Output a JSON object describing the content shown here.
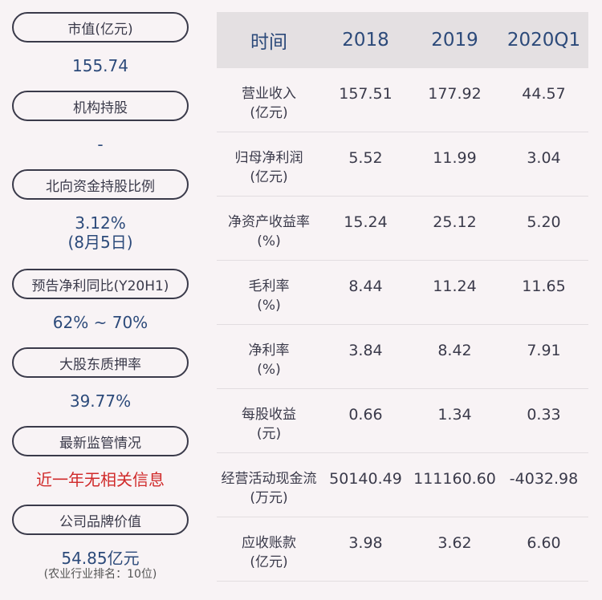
{
  "left": {
    "items": [
      {
        "label": "市值(亿元)",
        "value": "155.74"
      },
      {
        "label": "机构持股",
        "value": "-"
      },
      {
        "label": "北向资金持股比例",
        "value": "3.12%",
        "sub": "(8月5日)"
      },
      {
        "label": "预告净利同比(Y20H1)",
        "value": "62% ~ 70%"
      },
      {
        "label": "大股东质押率",
        "value": "39.77%"
      },
      {
        "label": "最新监管情况",
        "value": "近一年无相关信息"
      },
      {
        "label": "公司品牌价值",
        "value": "54.85亿元",
        "note": "(农业行业排名：10位)"
      }
    ]
  },
  "table": {
    "headers": [
      "时间",
      "2018",
      "2019",
      "2020Q1"
    ],
    "rows": [
      {
        "label": "营业收入",
        "unit": "(亿元)",
        "values": [
          "157.51",
          "177.92",
          "44.57"
        ]
      },
      {
        "label": "归母净利润",
        "unit": "(亿元)",
        "values": [
          "5.52",
          "11.99",
          "3.04"
        ]
      },
      {
        "label": "净资产收益率",
        "unit": "(%)",
        "values": [
          "15.24",
          "25.12",
          "5.20"
        ]
      },
      {
        "label": "毛利率",
        "unit": "(%)",
        "values": [
          "8.44",
          "11.24",
          "11.65"
        ]
      },
      {
        "label": "净利率",
        "unit": "(%)",
        "values": [
          "3.84",
          "8.42",
          "7.91"
        ]
      },
      {
        "label": "每股收益",
        "unit": "(元)",
        "values": [
          "0.66",
          "1.34",
          "0.33"
        ]
      },
      {
        "label": "经营活动现金流",
        "unit": "(万元)",
        "values": [
          "50140.49",
          "111160.60",
          "-4032.98"
        ]
      },
      {
        "label": "应收账款",
        "unit": "(亿元)",
        "values": [
          "3.98",
          "3.62",
          "6.60"
        ]
      }
    ]
  },
  "colors": {
    "background": "#f8f3f5",
    "value_blue": "#2c4a7a",
    "alert_red": "#d02a2a",
    "header_bg": "#e4e0e2"
  }
}
